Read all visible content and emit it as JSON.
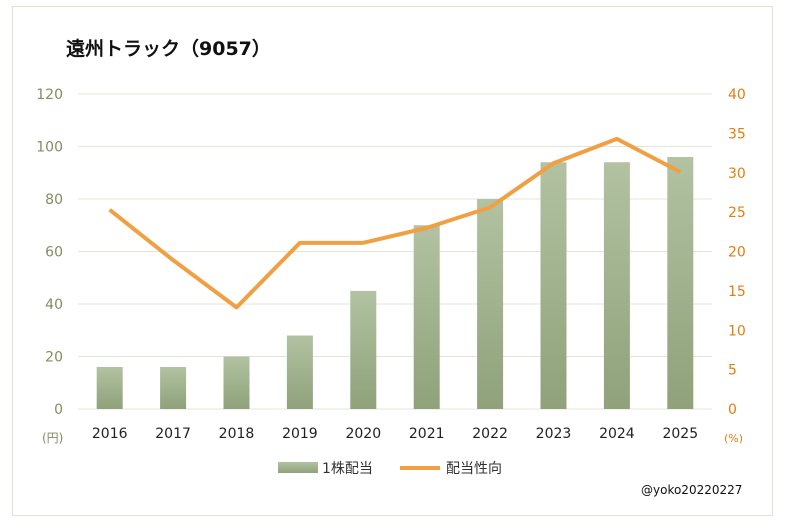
{
  "chart_data": {
    "type": "bar+line",
    "title": "遠州トラック（9057）",
    "categories": [
      "2016",
      "2017",
      "2018",
      "2019",
      "2020",
      "2021",
      "2022",
      "2023",
      "2024",
      "2025"
    ],
    "series": [
      {
        "name": "1株配当",
        "type": "bar",
        "axis": "left",
        "color": "#a4b792",
        "values": [
          16,
          16,
          20,
          28,
          45,
          70,
          80,
          94,
          94,
          96
        ]
      },
      {
        "name": "配当性向",
        "type": "line",
        "axis": "right",
        "color": "#f0a042",
        "values": [
          25.3,
          18.9,
          12.9,
          21.1,
          21.1,
          23.0,
          25.6,
          31.2,
          34.3,
          30.1
        ]
      }
    ],
    "left_axis": {
      "unit": "(円)",
      "ylim": [
        0,
        120
      ],
      "ticks": [
        0,
        20,
        40,
        60,
        80,
        100,
        120
      ],
      "color": "#7f8f5f"
    },
    "right_axis": {
      "unit": "(%)",
      "ylim": [
        0,
        40
      ],
      "ticks": [
        0,
        5,
        10,
        15,
        20,
        25,
        30,
        35,
        40
      ],
      "color": "#e07f10"
    },
    "grid": true,
    "legend_position": "bottom"
  },
  "credit": "@yoko20220227"
}
